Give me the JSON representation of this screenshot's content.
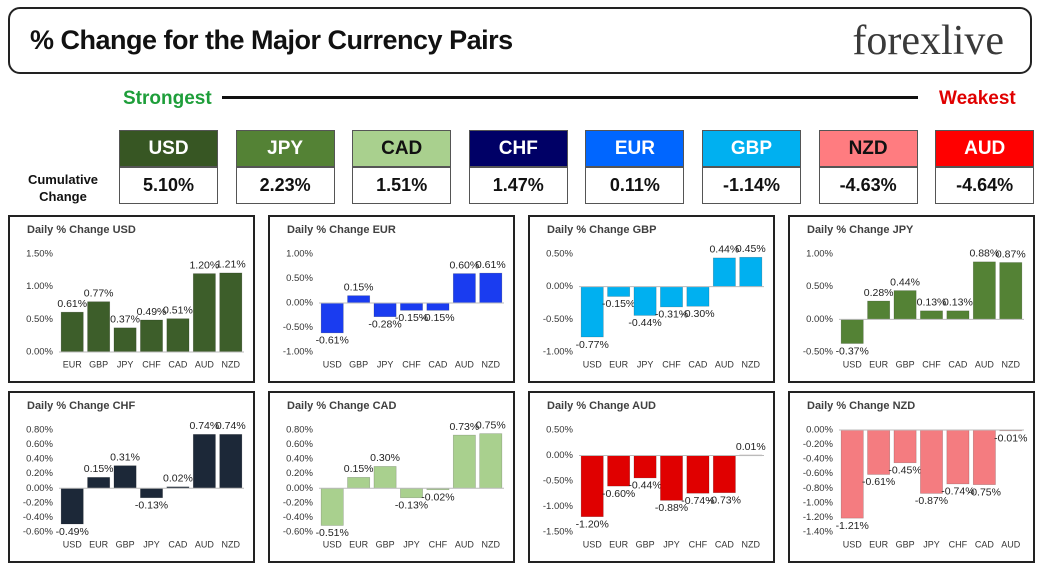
{
  "header": {
    "title": "% Change for the Major Currency Pairs",
    "logo": "forexlive",
    "strongest": "Strongest",
    "weakest": "Weakest",
    "row_label": "Cumulative Change",
    "currencies": [
      {
        "code": "USD",
        "change": "5.10%",
        "color": "#375623"
      },
      {
        "code": "JPY",
        "change": "2.23%",
        "color": "#548235"
      },
      {
        "code": "CAD",
        "change": "1.51%",
        "color": "#a9d08e"
      },
      {
        "code": "CHF",
        "change": "1.47%",
        "color": "#000066"
      },
      {
        "code": "EUR",
        "change": "0.11%",
        "color": "#0066ff"
      },
      {
        "code": "GBP",
        "change": "-1.14%",
        "color": "#00b0f0"
      },
      {
        "code": "NZD",
        "change": "-4.63%",
        "color": "#ff7c80"
      },
      {
        "code": "AUD",
        "change": "-4.64%",
        "color": "#ff0000"
      }
    ]
  },
  "chart_data": [
    {
      "type": "bar",
      "title": "Daily % Change USD",
      "color": "#3d5e2a",
      "categories": [
        "EUR",
        "GBP",
        "JPY",
        "CHF",
        "CAD",
        "AUD",
        "NZD"
      ],
      "values": [
        0.61,
        0.77,
        0.37,
        0.49,
        0.51,
        1.2,
        1.21
      ],
      "value_labels": [
        "0.61%",
        "0.77%",
        "0.37%",
        "0.49%",
        "0.51%",
        "1.20%",
        "1.21%"
      ],
      "ylim": [
        0,
        1.5
      ],
      "yticks": [
        {
          "value": 0,
          "label": "0.00%"
        },
        {
          "value": 0.5,
          "label": "0.50%"
        },
        {
          "value": 1,
          "label": "1.00%"
        },
        {
          "value": 1.5,
          "label": "1.50%"
        }
      ]
    },
    {
      "type": "bar",
      "title": "Daily % Change EUR",
      "color": "#1a3cf0",
      "categories": [
        "USD",
        "GBP",
        "JPY",
        "CHF",
        "CAD",
        "AUD",
        "NZD"
      ],
      "values": [
        -0.61,
        0.15,
        -0.28,
        -0.15,
        -0.15,
        0.6,
        0.61
      ],
      "value_labels": [
        "-0.61%",
        "0.15%",
        "-0.28%",
        "-0.15%",
        "-0.15%",
        "0.60%",
        "0.61%"
      ],
      "ylim": [
        -1,
        1
      ],
      "yticks": [
        {
          "value": -1,
          "label": "-1.00%"
        },
        {
          "value": -0.5,
          "label": "-0.50%"
        },
        {
          "value": 0,
          "label": "0.00%"
        },
        {
          "value": 0.5,
          "label": "0.50%"
        },
        {
          "value": 1,
          "label": "1.00%"
        }
      ]
    },
    {
      "type": "bar",
      "title": "Daily % Change GBP",
      "color": "#00b0f0",
      "categories": [
        "USD",
        "EUR",
        "JPY",
        "CHF",
        "CAD",
        "AUD",
        "NZD"
      ],
      "values": [
        -0.77,
        -0.15,
        -0.44,
        -0.31,
        -0.3,
        0.44,
        0.45
      ],
      "value_labels": [
        "-0.77%",
        "-0.15%",
        "-0.44%",
        "-0.31%",
        "-0.30%",
        "0.44%",
        "0.45%"
      ],
      "ylim": [
        -1,
        0.5
      ],
      "yticks": [
        {
          "value": -1,
          "label": "-1.00%"
        },
        {
          "value": -0.5,
          "label": "-0.50%"
        },
        {
          "value": 0,
          "label": "0.00%"
        },
        {
          "value": 0.5,
          "label": "0.50%"
        }
      ]
    },
    {
      "type": "bar",
      "title": "Daily % Change JPY",
      "color": "#548235",
      "categories": [
        "USD",
        "EUR",
        "GBP",
        "CHF",
        "CAD",
        "AUD",
        "NZD"
      ],
      "values": [
        -0.37,
        0.28,
        0.44,
        0.13,
        0.13,
        0.88,
        0.87
      ],
      "value_labels": [
        "-0.37%",
        "0.28%",
        "0.44%",
        "0.13%",
        "0.13%",
        "0.88%",
        "0.87%"
      ],
      "ylim": [
        -0.5,
        1
      ],
      "yticks": [
        {
          "value": -0.5,
          "label": "-0.50%"
        },
        {
          "value": 0,
          "label": "0.00%"
        },
        {
          "value": 0.5,
          "label": "0.50%"
        },
        {
          "value": 1,
          "label": "1.00%"
        }
      ]
    },
    {
      "type": "bar",
      "title": "Daily % Change CHF",
      "color": "#1c2838",
      "categories": [
        "USD",
        "EUR",
        "GBP",
        "JPY",
        "CAD",
        "AUD",
        "NZD"
      ],
      "values": [
        -0.49,
        0.15,
        0.31,
        -0.13,
        0.02,
        0.74,
        0.74
      ],
      "value_labels": [
        "-0.49%",
        "0.15%",
        "0.31%",
        "-0.13%",
        "0.02%",
        "0.74%",
        "0.74%"
      ],
      "ylim": [
        -0.6,
        0.8
      ],
      "yticks": [
        {
          "value": -0.6,
          "label": "-0.60%"
        },
        {
          "value": -0.4,
          "label": "-0.40%"
        },
        {
          "value": -0.2,
          "label": "-0.20%"
        },
        {
          "value": 0,
          "label": "0.00%"
        },
        {
          "value": 0.2,
          "label": "0.20%"
        },
        {
          "value": 0.4,
          "label": "0.40%"
        },
        {
          "value": 0.6,
          "label": "0.60%"
        },
        {
          "value": 0.8,
          "label": "0.80%"
        }
      ]
    },
    {
      "type": "bar",
      "title": "Daily % Change CAD",
      "color": "#a9d08e",
      "categories": [
        "USD",
        "EUR",
        "GBP",
        "JPY",
        "CHF",
        "AUD",
        "NZD"
      ],
      "values": [
        -0.51,
        0.15,
        0.3,
        -0.13,
        -0.02,
        0.73,
        0.75
      ],
      "value_labels": [
        "-0.51%",
        "0.15%",
        "0.30%",
        "-0.13%",
        "-0.02%",
        "0.73%",
        "0.75%"
      ],
      "ylim": [
        -0.6,
        0.8
      ],
      "yticks": [
        {
          "value": -0.6,
          "label": "-0.60%"
        },
        {
          "value": -0.4,
          "label": "-0.40%"
        },
        {
          "value": -0.2,
          "label": "-0.20%"
        },
        {
          "value": 0,
          "label": "0.00%"
        },
        {
          "value": 0.2,
          "label": "0.20%"
        },
        {
          "value": 0.4,
          "label": "0.40%"
        },
        {
          "value": 0.6,
          "label": "0.60%"
        },
        {
          "value": 0.8,
          "label": "0.80%"
        }
      ]
    },
    {
      "type": "bar",
      "title": "Daily % Change AUD",
      "color": "#e00000",
      "categories": [
        "USD",
        "EUR",
        "GBP",
        "JPY",
        "CHF",
        "CAD",
        "NZD"
      ],
      "values": [
        -1.2,
        -0.6,
        -0.44,
        -0.88,
        -0.74,
        -0.73,
        0.01
      ],
      "value_labels": [
        "-1.20%",
        "-0.60%",
        "-0.44%",
        "-0.88%",
        "-0.74%",
        "-0.73%",
        "0.01%"
      ],
      "ylim": [
        -1.5,
        0.5
      ],
      "yticks": [
        {
          "value": -1.5,
          "label": "-1.50%"
        },
        {
          "value": -1,
          "label": "-1.00%"
        },
        {
          "value": -0.5,
          "label": "-0.50%"
        },
        {
          "value": 0,
          "label": "0.00%"
        },
        {
          "value": 0.5,
          "label": "0.50%"
        }
      ]
    },
    {
      "type": "bar",
      "title": "Daily % Change NZD",
      "color": "#f47c80",
      "categories": [
        "USD",
        "EUR",
        "GBP",
        "JPY",
        "CHF",
        "CAD",
        "AUD"
      ],
      "values": [
        -1.21,
        -0.61,
        -0.45,
        -0.87,
        -0.74,
        -0.75,
        -0.01
      ],
      "value_labels": [
        "-1.21%",
        "-0.61%",
        "-0.45%",
        "-0.87%",
        "-0.74%",
        "-0.75%",
        "-0.01%"
      ],
      "ylim": [
        -1.4,
        0
      ],
      "yticks": [
        {
          "value": -1.4,
          "label": "-1.40%"
        },
        {
          "value": -1.2,
          "label": "-1.20%"
        },
        {
          "value": -1,
          "label": "-1.00%"
        },
        {
          "value": -0.8,
          "label": "-0.80%"
        },
        {
          "value": -0.6,
          "label": "-0.60%"
        },
        {
          "value": -0.4,
          "label": "-0.40%"
        },
        {
          "value": -0.2,
          "label": "-0.20%"
        },
        {
          "value": 0,
          "label": "0.00%"
        }
      ]
    }
  ]
}
